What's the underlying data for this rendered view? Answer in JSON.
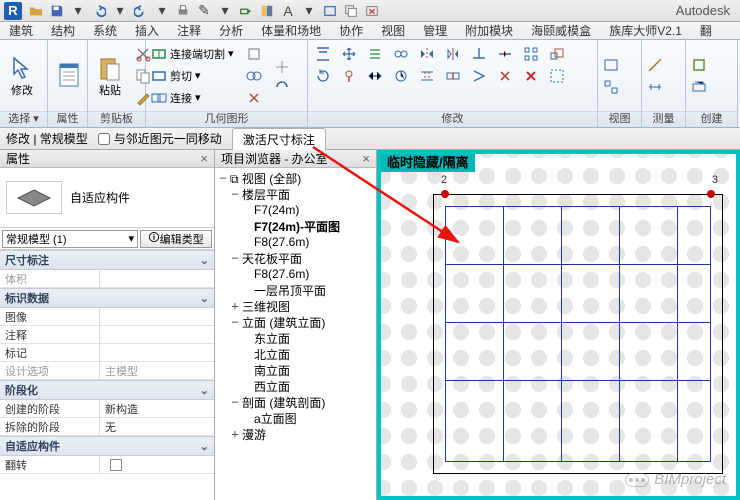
{
  "title": {
    "brand": "Autodesk"
  },
  "menu": [
    "建筑",
    "结构",
    "系统",
    "插入",
    "注释",
    "分析",
    "体量和场地",
    "协作",
    "视图",
    "管理",
    "附加模块",
    "海颐威模盒",
    "族库大师V2.1",
    "翻"
  ],
  "ribbon": {
    "p_modify": {
      "title": "选择 ▾",
      "btn": "修改"
    },
    "p_props": {
      "title": "属性"
    },
    "p_clip": {
      "title": "剪贴板",
      "btn": "粘贴"
    },
    "p_geom": {
      "title": "几何图形",
      "r1": "连接端切割",
      "r2": "剪切",
      "r3": "连接"
    },
    "p_mod2": {
      "title": "修改"
    },
    "p_view": {
      "title": "视图"
    },
    "p_meas": {
      "title": "测量"
    },
    "p_create": {
      "title": "创建"
    }
  },
  "optbar": {
    "s1": "修改 | 常规模型",
    "s2": "与邻近图元一同移动",
    "s3": "激活尺寸标注"
  },
  "props": {
    "hdr": "属性",
    "typeName": "自适应构件",
    "filter": "常规模型 (1)",
    "editType": "编辑类型",
    "groups": {
      "g1": "尺寸标注",
      "g1r1": "体积",
      "g2": "标识数据",
      "g2r1": "图像",
      "g2r2": "注释",
      "g2r3": "标记",
      "g2r4": "设计选项",
      "g2v4": "主模型",
      "g3": "阶段化",
      "g3r1": "创建的阶段",
      "g3v1": "新构造",
      "g3r2": "拆除的阶段",
      "g3v2": "无",
      "g4": "自适应构件",
      "g4r1": "翻转"
    }
  },
  "browser": {
    "hdr": "项目浏览器 - 办公室",
    "nodes": [
      {
        "d": 0,
        "tw": "−",
        "icon": 1,
        "lbl": "视图 (全部)"
      },
      {
        "d": 1,
        "tw": "−",
        "lbl": "楼层平面"
      },
      {
        "d": 2,
        "tw": "",
        "lbl": "F7(24m)"
      },
      {
        "d": 2,
        "tw": "",
        "lbl": "F7(24m)-平面图",
        "sel": 1
      },
      {
        "d": 2,
        "tw": "",
        "lbl": "F8(27.6m)"
      },
      {
        "d": 1,
        "tw": "−",
        "lbl": "天花板平面"
      },
      {
        "d": 2,
        "tw": "",
        "lbl": "F8(27.6m)"
      },
      {
        "d": 2,
        "tw": "",
        "lbl": "一层吊顶平面"
      },
      {
        "d": 1,
        "tw": "+",
        "lbl": "三维视图"
      },
      {
        "d": 1,
        "tw": "−",
        "lbl": "立面 (建筑立面)"
      },
      {
        "d": 2,
        "tw": "",
        "lbl": "东立面"
      },
      {
        "d": 2,
        "tw": "",
        "lbl": "北立面"
      },
      {
        "d": 2,
        "tw": "",
        "lbl": "南立面"
      },
      {
        "d": 2,
        "tw": "",
        "lbl": "西立面"
      },
      {
        "d": 1,
        "tw": "−",
        "lbl": "剖面 (建筑剖面)"
      },
      {
        "d": 2,
        "tw": "",
        "lbl": "a立面图"
      },
      {
        "d": 1,
        "tw": "+",
        "lbl": "漫游"
      }
    ]
  },
  "canvas": {
    "tempHide": "临时隐藏/隔离",
    "gridLabels": [
      "2",
      "3"
    ],
    "watermark": "BIMproject"
  }
}
